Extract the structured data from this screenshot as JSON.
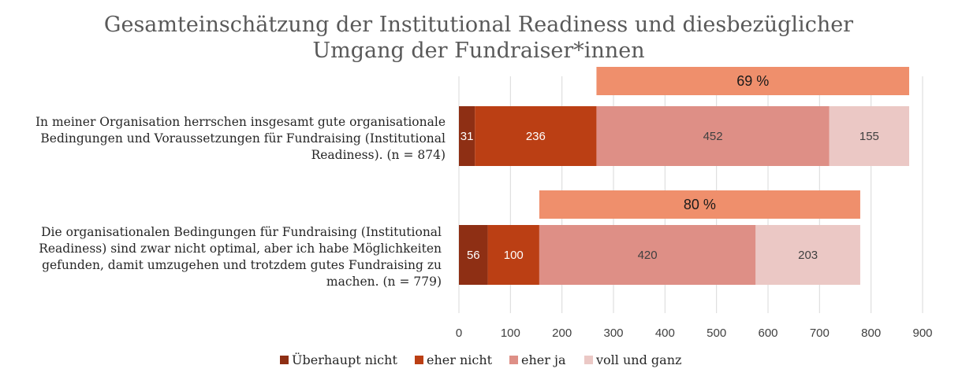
{
  "chart_data": {
    "type": "bar",
    "orientation": "horizontal",
    "stacked": true,
    "title_lines": [
      "Gesamteinschätzung der Institutional Readiness und diesbezüglicher",
      "Umgang der Fundraiser*innen"
    ],
    "categories": [
      {
        "label_lines": [
          "In meiner Organisation herrschen insgesamt gute organisationale",
          "Bedingungen und Voraussetzungen für Fundraising (Institutional",
          "Readiness). (n = 874)"
        ]
      },
      {
        "label_lines": [
          "Die organisationalen Bedingungen für Fundraising (Institutional",
          "Readiness) sind zwar nicht optimal, aber ich habe Möglichkeiten",
          "gefunden, damit umzugehen und trotzdem gutes Fundraising zu",
          "machen. (n = 779)"
        ]
      }
    ],
    "series": [
      {
        "name": "Überhaupt nicht",
        "color": "#8E2F14",
        "label_color": "#ffffff",
        "values": [
          31,
          56
        ],
        "data_labels": [
          "31",
          "56"
        ]
      },
      {
        "name": "eher nicht",
        "color": "#BB3F14",
        "label_color": "#ffffff",
        "values": [
          236,
          100
        ],
        "data_labels": [
          "236",
          "100"
        ]
      },
      {
        "name": "eher ja",
        "color": "#DE8F86",
        "label_color": "#404040",
        "values": [
          452,
          420
        ],
        "data_labels": [
          "452",
          "420"
        ]
      },
      {
        "name": "voll und ganz",
        "color": "#EBC8C5",
        "label_color": "#404040",
        "values": [
          155,
          203
        ],
        "data_labels": [
          "155",
          "203"
        ]
      }
    ],
    "agreement_bars": {
      "color": "#EF8F6C",
      "labels": [
        "69 %",
        "80 %"
      ]
    },
    "xlim": [
      0,
      900
    ],
    "x_ticks": [
      0,
      100,
      200,
      300,
      400,
      500,
      600,
      700,
      800,
      900
    ],
    "x_tick_labels": [
      "0",
      "100",
      "200",
      "300",
      "400",
      "500",
      "600",
      "700",
      "800",
      "900"
    ],
    "grid": true,
    "grid_color": "#D9D9D9",
    "legend_position": "bottom"
  }
}
